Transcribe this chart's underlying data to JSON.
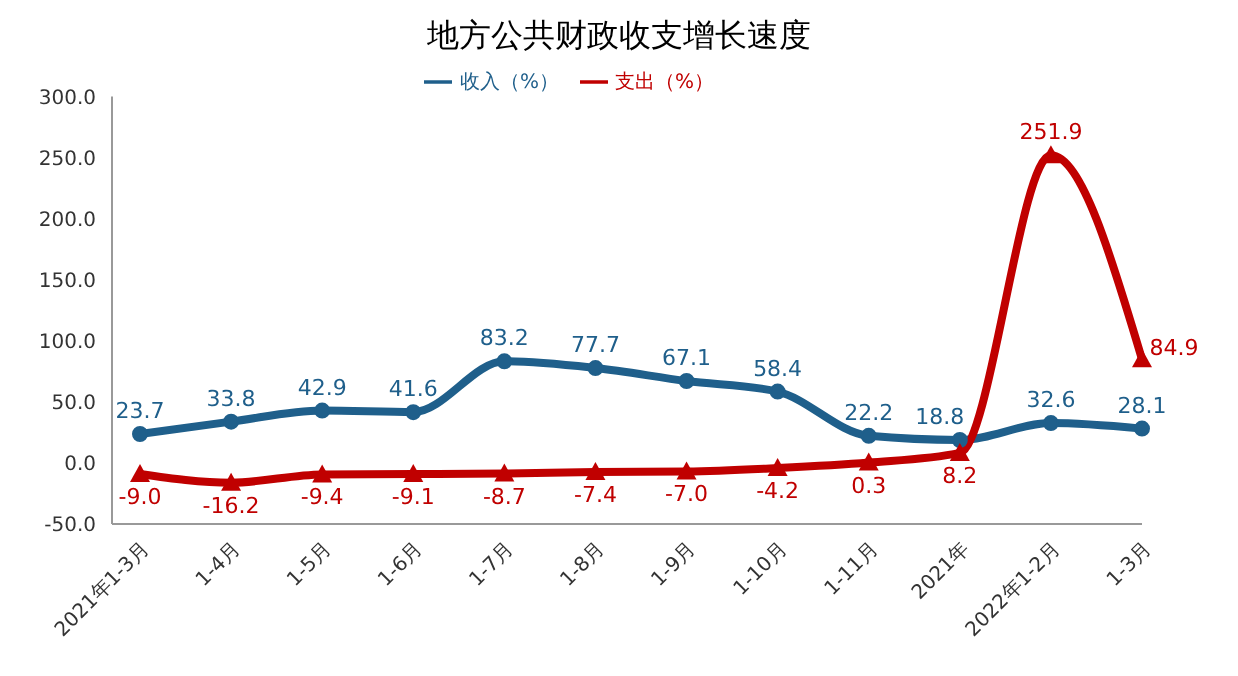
{
  "chart_data": {
    "type": "line",
    "title": "地方公共财政收支增长速度",
    "categories": [
      "2021年1-3月",
      "1-4月",
      "1-5月",
      "1-6月",
      "1-7月",
      "1-8月",
      "1-9月",
      "1-10月",
      "1-11月",
      "2021年",
      "2022年1-2月",
      "1-3月"
    ],
    "series": [
      {
        "name": "收入（%）",
        "color": "#1f5f8b",
        "marker": "circle",
        "values": [
          23.7,
          33.8,
          42.9,
          41.6,
          83.2,
          77.7,
          67.1,
          58.4,
          22.2,
          18.8,
          32.6,
          28.1
        ],
        "value_labels": [
          "23.7",
          "33.8",
          "42.9",
          "41.6",
          "83.2",
          "77.7",
          "67.1",
          "58.4",
          "22.2",
          "18.8",
          "32.6",
          "28.1"
        ]
      },
      {
        "name": "支出（%）",
        "color": "#c00000",
        "marker": "triangle",
        "values": [
          -9.0,
          -16.2,
          -9.4,
          -9.1,
          -8.7,
          -7.4,
          -7.0,
          -4.2,
          0.3,
          8.2,
          251.9,
          84.9
        ],
        "value_labels": [
          "-9.0",
          "-16.2",
          "-9.4",
          "-9.1",
          "-8.7",
          "-7.4",
          "-7.0",
          "-4.2",
          "0.3",
          "8.2",
          "251.9",
          "84.9"
        ]
      }
    ],
    "ylim": [
      -50,
      300
    ],
    "yticks": [
      {
        "value": -50,
        "label": "-50.0"
      },
      {
        "value": 0,
        "label": "0.0"
      },
      {
        "value": 50,
        "label": "50.0"
      },
      {
        "value": 100,
        "label": "100.0"
      },
      {
        "value": 150,
        "label": "150.0"
      },
      {
        "value": 200,
        "label": "200.0"
      },
      {
        "value": 250,
        "label": "250.0"
      },
      {
        "value": 300,
        "label": "300.0"
      }
    ],
    "legend": "top",
    "grid": false
  }
}
